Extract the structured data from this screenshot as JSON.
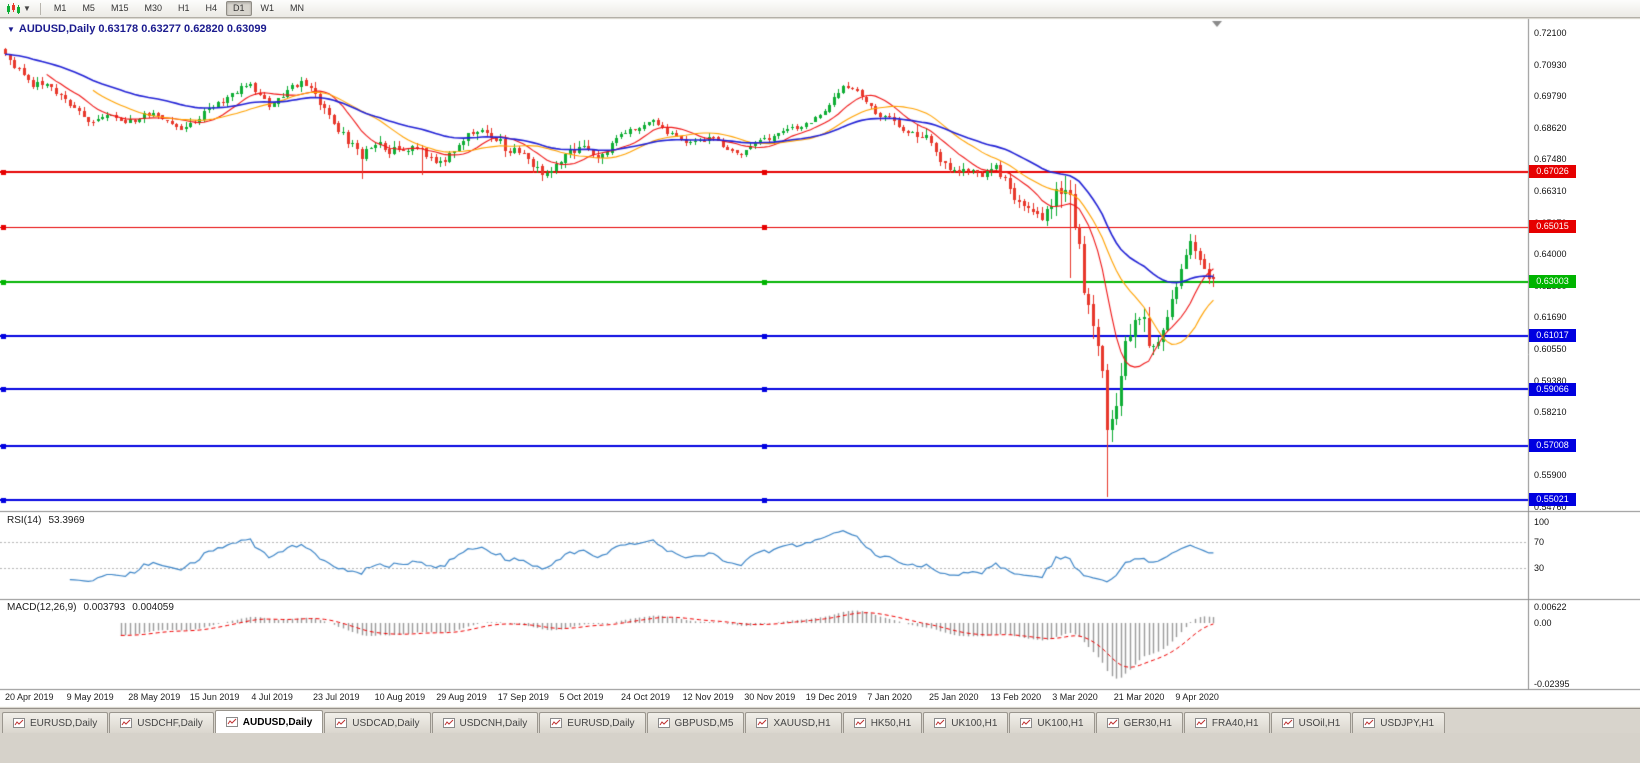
{
  "toolbar": {
    "timeframes": [
      "M1",
      "M5",
      "M15",
      "M30",
      "H1",
      "H4",
      "D1",
      "W1",
      "MN"
    ],
    "active_timeframe": "D1"
  },
  "chart_header": {
    "symbol": "AUDUSD,Daily",
    "open": "0.63178",
    "high": "0.63277",
    "low": "0.62820",
    "close": "0.63099",
    "title_text": "AUDUSD,Daily  0.63178 0.63277 0.62820 0.63099"
  },
  "price_axis": {
    "labels": [
      "0.72100",
      "0.70930",
      "0.69790",
      "0.68620",
      "0.67480",
      "0.66310",
      "0.65170",
      "0.64000",
      "0.62860",
      "0.61690",
      "0.60550",
      "0.59380",
      "0.58210",
      "0.57040",
      "0.55900",
      "0.54760"
    ],
    "max": 0.721,
    "min": 0.5476
  },
  "hlines": [
    {
      "value": 0.67026,
      "label": "0.67026",
      "color": "#e60000",
      "width": 2
    },
    {
      "value": 0.65015,
      "label": "0.65015",
      "color": "#e60000",
      "width": 1
    },
    {
      "value": 0.63003,
      "label": "0.63003",
      "color": "#00b400",
      "width": 2
    },
    {
      "value": 0.61017,
      "label": "0.61017",
      "color": "#0000e0",
      "width": 2
    },
    {
      "value": 0.59066,
      "label": "0.59066",
      "color": "#0000e0",
      "width": 2
    },
    {
      "value": 0.57008,
      "label": "0.57008",
      "color": "#0000e0",
      "width": 2
    },
    {
      "value": 0.55021,
      "label": "0.55021",
      "color": "#0000e0",
      "width": 2
    }
  ],
  "rsi_panel": {
    "name": "RSI(14)",
    "value": "53.3969",
    "axis_labels": [
      "100",
      "70",
      "30"
    ],
    "axis_values": [
      100,
      70,
      30
    ],
    "upper_level": 70,
    "lower_level": 30,
    "line_color": "#3e86c8"
  },
  "macd_panel": {
    "name": "MACD(12,26,9)",
    "value_main": "0.003793",
    "value_signal": "0.004059",
    "axis_labels": [
      "0.00622",
      "0.00",
      "-0.02395"
    ],
    "axis_values": [
      0.00622,
      0,
      -0.02395
    ],
    "histogram_color": "#9a9a9a",
    "signal_color": "#f00000"
  },
  "date_axis": {
    "labels": [
      "20 Apr 2019",
      "9 May 2019",
      "28 May 2019",
      "15 Jun 2019",
      "4 Jul 2019",
      "23 Jul 2019",
      "10 Aug 2019",
      "29 Aug 2019",
      "17 Sep 2019",
      "5 Oct 2019",
      "24 Oct 2019",
      "12 Nov 2019",
      "30 Nov 2019",
      "19 Dec 2019",
      "7 Jan 2020",
      "25 Jan 2020",
      "13 Feb 2020",
      "3 Mar 2020",
      "21 Mar 2020",
      "9 Apr 2020"
    ]
  },
  "tabs": {
    "items": [
      "EURUSD,Daily",
      "USDCHF,Daily",
      "AUDUSD,Daily",
      "USDCAD,Daily",
      "USDCNH,Daily",
      "EURUSD,Daily",
      "GBPUSD,M5",
      "XAUUSD,H1",
      "HK50,H1",
      "UK100,H1",
      "UK100,H1",
      "GER30,H1",
      "FRA40,H1",
      "USOil,H1",
      "USDJPY,H1"
    ],
    "active_index": 2
  },
  "chart_data": {
    "type": "candlestick",
    "title": "AUDUSD Daily",
    "bars": 262,
    "current_ohlc": {
      "open": 0.63178,
      "high": 0.63277,
      "low": 0.6282,
      "close": 0.63099
    },
    "y_range": {
      "min": 0.5476,
      "max": 0.721
    },
    "up_color": "#0fae35",
    "down_color": "#e8382b",
    "close_anchors": [
      [
        0,
        0.7132
      ],
      [
        3,
        0.707
      ],
      [
        6,
        0.7018
      ],
      [
        9,
        0.7024
      ],
      [
        13,
        0.6962
      ],
      [
        16,
        0.692
      ],
      [
        19,
        0.6878
      ],
      [
        23,
        0.6908
      ],
      [
        27,
        0.6885
      ],
      [
        31,
        0.6912
      ],
      [
        34,
        0.6902
      ],
      [
        38,
        0.6868
      ],
      [
        41,
        0.6882
      ],
      [
        44,
        0.693
      ],
      [
        47,
        0.6963
      ],
      [
        50,
        0.6998
      ],
      [
        53,
        0.7022
      ],
      [
        55,
        0.6988
      ],
      [
        57,
        0.6938
      ],
      [
        59,
        0.6965
      ],
      [
        61,
        0.7
      ],
      [
        64,
        0.7032
      ],
      [
        66,
        0.7008
      ],
      [
        68,
        0.6952
      ],
      [
        70,
        0.6915
      ],
      [
        72,
        0.6848
      ],
      [
        75,
        0.68
      ],
      [
        77,
        0.6762
      ],
      [
        79,
        0.6785
      ],
      [
        81,
        0.6798
      ],
      [
        83,
        0.6775
      ],
      [
        85,
        0.6782
      ],
      [
        88,
        0.6792
      ],
      [
        90,
        0.6776
      ],
      [
        93,
        0.6722
      ],
      [
        96,
        0.6758
      ],
      [
        99,
        0.6812
      ],
      [
        103,
        0.6868
      ],
      [
        106,
        0.683
      ],
      [
        109,
        0.6778
      ],
      [
        111,
        0.6762
      ],
      [
        113,
        0.6752
      ],
      [
        116,
        0.6706
      ],
      [
        118,
        0.6722
      ],
      [
        120,
        0.6742
      ],
      [
        124,
        0.6792
      ],
      [
        126,
        0.6778
      ],
      [
        128,
        0.6768
      ],
      [
        131,
        0.6802
      ],
      [
        133,
        0.6832
      ],
      [
        135,
        0.685
      ],
      [
        137,
        0.6862
      ],
      [
        140,
        0.6888
      ],
      [
        142,
        0.6862
      ],
      [
        144,
        0.684
      ],
      [
        146,
        0.6818
      ],
      [
        148,
        0.6802
      ],
      [
        150,
        0.6818
      ],
      [
        152,
        0.6832
      ],
      [
        154,
        0.6808
      ],
      [
        156,
        0.6788
      ],
      [
        159,
        0.6772
      ],
      [
        161,
        0.6792
      ],
      [
        163,
        0.6812
      ],
      [
        166,
        0.6832
      ],
      [
        168,
        0.6845
      ],
      [
        170,
        0.6858
      ],
      [
        172,
        0.6868
      ],
      [
        174,
        0.6882
      ],
      [
        176,
        0.6902
      ],
      [
        178,
        0.6938
      ],
      [
        181,
        0.7018
      ],
      [
        183,
        0.7002
      ],
      [
        185,
        0.6982
      ],
      [
        188,
        0.6912
      ],
      [
        191,
        0.6902
      ],
      [
        193,
        0.6872
      ],
      [
        195,
        0.6852
      ],
      [
        197,
        0.6842
      ],
      [
        199,
        0.6826
      ],
      [
        201,
        0.6782
      ],
      [
        204,
        0.6692
      ],
      [
        206,
        0.6712
      ],
      [
        208,
        0.6722
      ],
      [
        210,
        0.6688
      ],
      [
        212,
        0.6702
      ],
      [
        214,
        0.6716
      ],
      [
        216,
        0.6672
      ],
      [
        218,
        0.6612
      ],
      [
        220,
        0.6582
      ],
      [
        222,
        0.6552
      ],
      [
        224,
        0.6518
      ],
      [
        226,
        0.6582
      ],
      [
        227,
        0.6628
      ],
      [
        229,
        0.6642
      ],
      [
        230,
        0.6582
      ],
      [
        231,
        0.6522
      ],
      [
        232,
        0.6452
      ],
      [
        233,
        0.6292
      ],
      [
        234,
        0.6252
      ],
      [
        235,
        0.6122
      ],
      [
        236,
        0.6052
      ],
      [
        237,
        0.5962
      ],
      [
        238,
        0.5748
      ],
      [
        239,
        0.5802
      ],
      [
        240,
        0.5882
      ],
      [
        241,
        0.5972
      ],
      [
        242,
        0.6052
      ],
      [
        244,
        0.6168
      ],
      [
        246,
        0.6138
      ],
      [
        248,
        0.6062
      ],
      [
        250,
        0.6122
      ],
      [
        251,
        0.6168
      ],
      [
        253,
        0.6282
      ],
      [
        254,
        0.6348
      ],
      [
        256,
        0.6442
      ],
      [
        257,
        0.6412
      ],
      [
        258,
        0.6392
      ],
      [
        259,
        0.6368
      ],
      [
        260,
        0.6332
      ],
      [
        261,
        0.631
      ]
    ],
    "wick_lows": {
      "77": 0.6677,
      "90": 0.669,
      "116": 0.667,
      "230": 0.6312,
      "238": 0.5512
    },
    "volatility_segments": [
      [
        0,
        66,
        0.0028
      ],
      [
        67,
        130,
        0.004
      ],
      [
        131,
        196,
        0.0024
      ],
      [
        197,
        225,
        0.0038
      ],
      [
        226,
        247,
        0.0085
      ],
      [
        248,
        261,
        0.005
      ]
    ],
    "ma_lines": [
      {
        "period": 10,
        "type": "sma",
        "color": "#f01515"
      },
      {
        "period": 20,
        "type": "sma",
        "color": "#ffa200"
      },
      {
        "period": 40,
        "type": "ema",
        "color": "#2222d6"
      }
    ],
    "indicators": {
      "rsi_period": 14,
      "macd": [
        12,
        26,
        9
      ]
    }
  }
}
